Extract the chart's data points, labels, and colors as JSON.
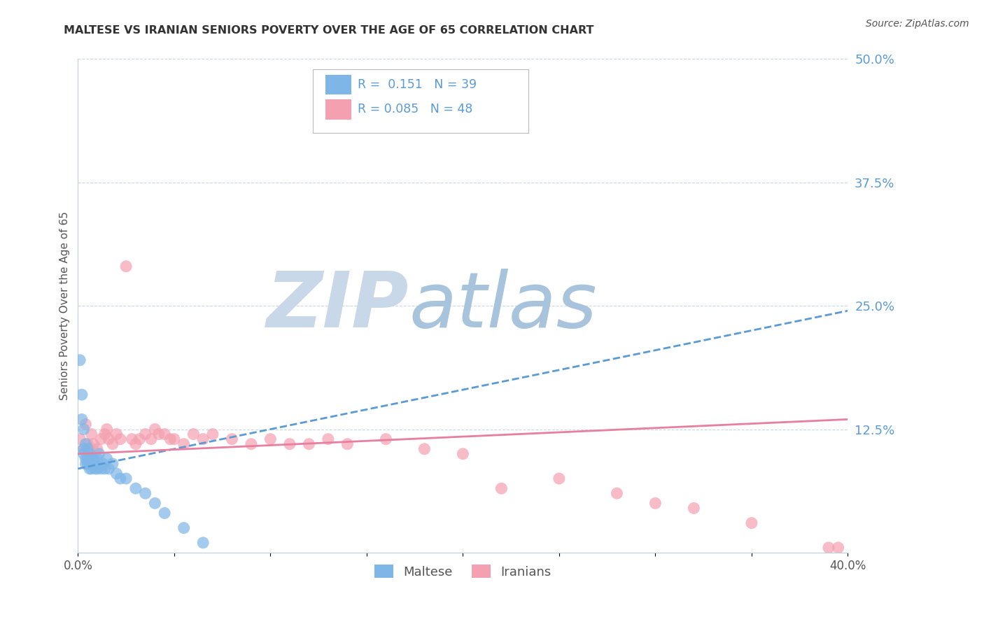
{
  "title": "MALTESE VS IRANIAN SENIORS POVERTY OVER THE AGE OF 65 CORRELATION CHART",
  "source": "Source: ZipAtlas.com",
  "ylabel": "Seniors Poverty Over the Age of 65",
  "xlim": [
    0.0,
    0.4
  ],
  "ylim": [
    0.0,
    0.5
  ],
  "xticks": [
    0.0,
    0.05,
    0.1,
    0.15,
    0.2,
    0.25,
    0.3,
    0.35,
    0.4
  ],
  "xticklabels": [
    "0.0%",
    "",
    "",
    "",
    "",
    "",
    "",
    "",
    "40.0%"
  ],
  "ytick_positions": [
    0.125,
    0.25,
    0.375,
    0.5
  ],
  "ytick_labels": [
    "12.5%",
    "25.0%",
    "37.5%",
    "50.0%"
  ],
  "maltese_R": 0.151,
  "maltese_N": 39,
  "iranian_R": 0.085,
  "iranian_N": 48,
  "maltese_color": "#7EB6E8",
  "iranian_color": "#F4A0B0",
  "maltese_line_color": "#5B9BD5",
  "iranian_line_color": "#E87FA0",
  "grid_color": "#C8D8E8",
  "background_color": "#FFFFFF",
  "watermark_zip_color": "#C8D8E8",
  "watermark_atlas_color": "#A8C4DC",
  "maltese_x": [
    0.001,
    0.002,
    0.002,
    0.003,
    0.003,
    0.003,
    0.004,
    0.004,
    0.004,
    0.005,
    0.005,
    0.005,
    0.006,
    0.006,
    0.006,
    0.007,
    0.007,
    0.008,
    0.008,
    0.009,
    0.009,
    0.01,
    0.01,
    0.011,
    0.012,
    0.013,
    0.014,
    0.015,
    0.016,
    0.018,
    0.02,
    0.022,
    0.025,
    0.03,
    0.035,
    0.04,
    0.045,
    0.055,
    0.065
  ],
  "maltese_y": [
    0.195,
    0.135,
    0.16,
    0.1,
    0.105,
    0.125,
    0.09,
    0.11,
    0.095,
    0.09,
    0.095,
    0.105,
    0.085,
    0.09,
    0.1,
    0.085,
    0.095,
    0.09,
    0.095,
    0.085,
    0.09,
    0.085,
    0.095,
    0.1,
    0.085,
    0.09,
    0.085,
    0.095,
    0.085,
    0.09,
    0.08,
    0.075,
    0.075,
    0.065,
    0.06,
    0.05,
    0.04,
    0.025,
    0.01
  ],
  "iranian_x": [
    0.001,
    0.003,
    0.004,
    0.005,
    0.006,
    0.007,
    0.008,
    0.01,
    0.012,
    0.014,
    0.015,
    0.016,
    0.018,
    0.02,
    0.022,
    0.025,
    0.028,
    0.03,
    0.032,
    0.035,
    0.038,
    0.04,
    0.042,
    0.045,
    0.048,
    0.05,
    0.055,
    0.06,
    0.065,
    0.07,
    0.08,
    0.09,
    0.1,
    0.11,
    0.12,
    0.13,
    0.14,
    0.16,
    0.18,
    0.2,
    0.22,
    0.25,
    0.28,
    0.3,
    0.32,
    0.35,
    0.39,
    0.395
  ],
  "iranian_y": [
    0.115,
    0.105,
    0.13,
    0.11,
    0.105,
    0.12,
    0.11,
    0.105,
    0.115,
    0.12,
    0.125,
    0.115,
    0.11,
    0.12,
    0.115,
    0.29,
    0.115,
    0.11,
    0.115,
    0.12,
    0.115,
    0.125,
    0.12,
    0.12,
    0.115,
    0.115,
    0.11,
    0.12,
    0.115,
    0.12,
    0.115,
    0.11,
    0.115,
    0.11,
    0.11,
    0.115,
    0.11,
    0.115,
    0.105,
    0.1,
    0.065,
    0.075,
    0.06,
    0.05,
    0.045,
    0.03,
    0.005,
    0.005
  ],
  "maltese_trend_x": [
    0.0,
    0.4
  ],
  "maltese_trend_y_start": 0.085,
  "maltese_trend_y_end": 0.245,
  "iranian_trend_x": [
    0.0,
    0.4
  ],
  "iranian_trend_y_start": 0.1,
  "iranian_trend_y_end": 0.135
}
